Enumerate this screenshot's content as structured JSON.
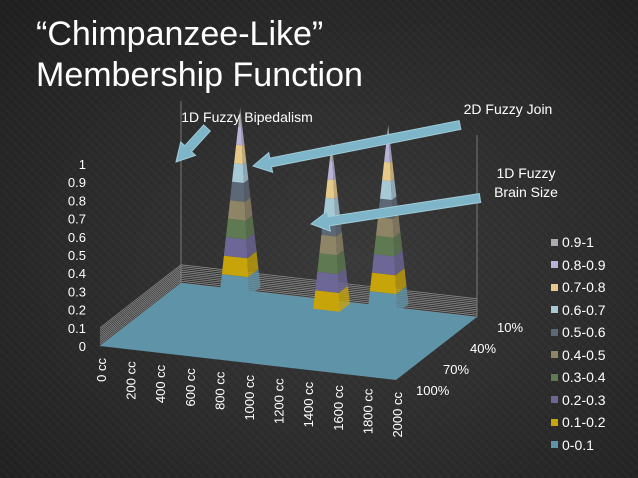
{
  "slide": {
    "title_line1": "“Chimpanzee-Like”",
    "title_line2": "Membership Function"
  },
  "annotations": {
    "bipedalism": "1D Fuzzy Bipedalism",
    "join": "2D Fuzzy Join",
    "brain_line1": "1D Fuzzy",
    "brain_line2": "Brain Size"
  },
  "chart_data": {
    "type": "3d-surface",
    "x_axis": {
      "categories": [
        "0 cc",
        "200 cc",
        "400 cc",
        "600 cc",
        "800 cc",
        "1000 cc",
        "1200 cc",
        "1400 cc",
        "1600 cc",
        "1800 cc",
        "2000 cc"
      ]
    },
    "z_axis": {
      "categories": [
        "10%",
        "40%",
        "70%",
        "100%"
      ]
    },
    "y_axis": {
      "ticks": [
        "0",
        "0.1",
        "0.2",
        "0.3",
        "0.4",
        "0.5",
        "0.6",
        "0.7",
        "0.8",
        "0.9",
        "1"
      ],
      "ylim": [
        0,
        1
      ]
    },
    "peaks": [
      {
        "x": "400 cc",
        "z": "10%",
        "value": 1.0
      },
      {
        "x": "1200 cc",
        "z": "40%",
        "value": 1.0
      },
      {
        "x": "1400 cc",
        "z": "10%",
        "value": 1.0
      }
    ],
    "legend_placement": "right",
    "legend": [
      {
        "label": "0.9-1",
        "color": "#a9abb0"
      },
      {
        "label": "0.8-0.9",
        "color": "#b7b2d6"
      },
      {
        "label": "0.7-0.8",
        "color": "#e6c98a"
      },
      {
        "label": "0.6-0.7",
        "color": "#a7c9d6"
      },
      {
        "label": "0.5-0.6",
        "color": "#5d6876"
      },
      {
        "label": "0.4-0.5",
        "color": "#8e8466"
      },
      {
        "label": "0.3-0.4",
        "color": "#5f7a52"
      },
      {
        "label": "0.2-0.3",
        "color": "#6d6797"
      },
      {
        "label": "0.1-0.2",
        "color": "#c6a40a"
      },
      {
        "label": "0-0.1",
        "color": "#5f93a8"
      }
    ],
    "floor_color": "#5f93a8",
    "arrow_color": "#7fb5c8",
    "grid": true
  }
}
